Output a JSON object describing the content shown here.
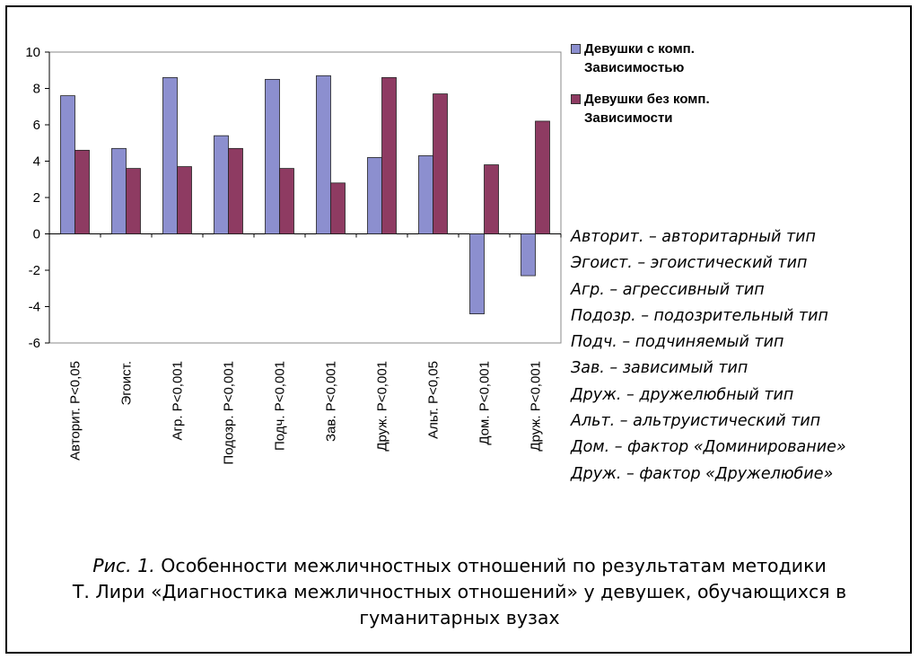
{
  "chart_data": {
    "type": "bar",
    "categories": [
      "Авторит. P<0,05",
      "Эгоист.",
      "Агр. P<0,001",
      "Подозр. P<0,001",
      "Подч. P<0,001",
      "Зав. P<0,001",
      "Друж. P<0,001",
      "Альт. P<0,05",
      "Дом. P<0,001",
      "Друж. P<0,001"
    ],
    "series": [
      {
        "name": "Девушки с комп. Зависимостью",
        "color": "#8c8fcf",
        "values": [
          7.6,
          4.7,
          8.6,
          5.4,
          8.5,
          8.7,
          4.2,
          4.3,
          -4.4,
          -2.3
        ]
      },
      {
        "name": "Девушки без комп. Зависимости",
        "color": "#8e3b62",
        "values": [
          4.6,
          3.6,
          3.7,
          4.7,
          3.6,
          2.8,
          8.6,
          7.7,
          3.8,
          6.2
        ]
      }
    ],
    "legend_lines": [
      [
        "Девушки  с комп.",
        "Зависимостью"
      ],
      [
        "Девушки  без комп.",
        "Зависимости"
      ]
    ],
    "ylim": [
      -6,
      10
    ],
    "yticks": [
      "10",
      "8",
      "6",
      "4",
      "2",
      "0",
      "-2",
      "-4",
      "-6"
    ],
    "legend_position": "right",
    "grid": false
  },
  "abbreviations": [
    "Авторит. – авторитарный тип",
    "Эгоист. – эгоистический тип",
    "Агр. – агрессивный тип",
    "Подозр. – подозрительный тип",
    "Подч. – подчиняемый тип",
    "Зав. – зависимый тип",
    "Друж. – дружелюбный тип",
    "Альт. – альтруистический тип",
    "Дом. – фактор «Доминирование»",
    "Друж. – фактор «Дружелюбие»"
  ],
  "caption": {
    "label": "Рис. 1.",
    "line1": " Особенности межличностных отношений по результатам методики",
    "line2": "Т. Лири «Диагностика межличностных отношений» у девушек, обучающихся в",
    "line3": "гуманитарных вузах"
  }
}
